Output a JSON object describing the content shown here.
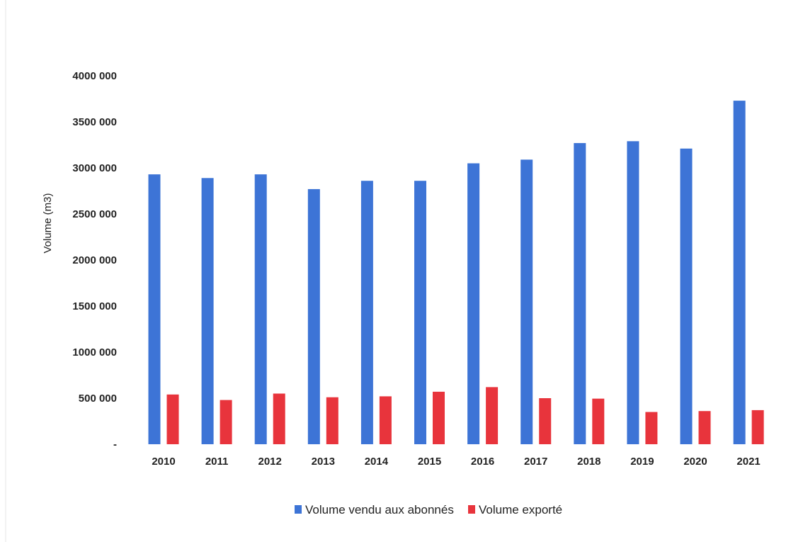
{
  "chart_data": {
    "type": "bar",
    "categories": [
      "2010",
      "2011",
      "2012",
      "2013",
      "2014",
      "2015",
      "2016",
      "2017",
      "2018",
      "2019",
      "2020",
      "2021"
    ],
    "series": [
      {
        "name": "Volume vendu aux abonnés",
        "color": "#3d74d6",
        "values": [
          2930000,
          2890000,
          2930000,
          2770000,
          2860000,
          2860000,
          3050000,
          3090000,
          3270000,
          3290000,
          3210000,
          3730000
        ]
      },
      {
        "name": "Volume exporté",
        "color": "#e8343c",
        "values": [
          540000,
          480000,
          550000,
          510000,
          520000,
          570000,
          620000,
          500000,
          495000,
          350000,
          360000,
          370000
        ]
      }
    ],
    "ylabel": "Volume (m3)",
    "ylim": [
      0,
      4000000
    ],
    "yticks": [
      {
        "value": 0,
        "label": "-"
      },
      {
        "value": 500000,
        "label": "500 000"
      },
      {
        "value": 1000000,
        "label": "1000 000"
      },
      {
        "value": 1500000,
        "label": "1500 000"
      },
      {
        "value": 2000000,
        "label": "2000 000"
      },
      {
        "value": 2500000,
        "label": "2500 000"
      },
      {
        "value": 3000000,
        "label": "3000 000"
      },
      {
        "value": 3500000,
        "label": "3500 000"
      },
      {
        "value": 4000000,
        "label": "4000 000"
      }
    ],
    "grid": false,
    "legend": "bottom-center"
  }
}
